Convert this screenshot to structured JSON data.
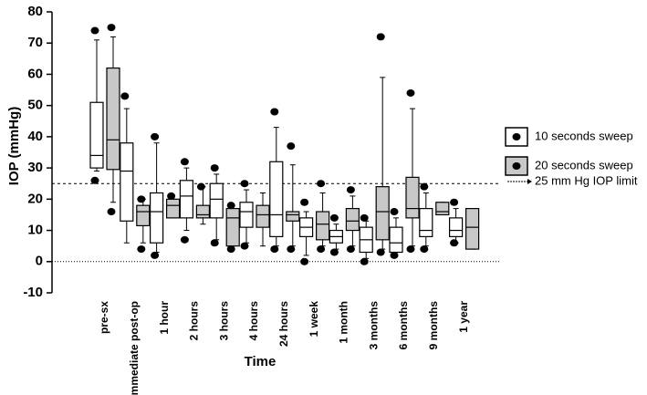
{
  "chart_data": {
    "type": "box",
    "y_label": "IOP (mmHg)",
    "x_label": "Time",
    "categories": [
      "pre-sx",
      "immediate post-op",
      "1 hour",
      "2 hours",
      "3 hours",
      "4 hours",
      "24 hours",
      "1 week",
      "1 month",
      "3 months",
      "6 months",
      "9 months",
      "1 year"
    ],
    "series": [
      {
        "name": "10 seconds sweep",
        "color": "#ffffff",
        "min": [
          29,
          6,
          3,
          10,
          7,
          6,
          5,
          2,
          4,
          1,
          3,
          5,
          6
        ],
        "q1": [
          30,
          13,
          6,
          14,
          14,
          11,
          8,
          8,
          6,
          3,
          3,
          8,
          8
        ],
        "median": [
          34,
          29,
          16,
          21,
          20,
          16,
          15,
          11,
          8,
          7,
          6,
          10,
          10
        ],
        "q3": [
          51,
          38,
          22,
          26,
          25,
          19,
          32,
          14,
          10,
          11,
          11,
          17,
          14
        ],
        "max": [
          71,
          49,
          38,
          30,
          28,
          23,
          43,
          16,
          12,
          13,
          14,
          22,
          17
        ],
        "outliers": [
          [
            74,
            26
          ],
          [
            53
          ],
          [
            40,
            2
          ],
          [
            32,
            7
          ],
          [
            30,
            6
          ],
          [
            25,
            5
          ],
          [
            48,
            4
          ],
          [
            19,
            0
          ],
          [
            14,
            3
          ],
          [
            14,
            0
          ],
          [
            16,
            2
          ],
          [
            24,
            4
          ],
          [
            19,
            6
          ]
        ]
      },
      {
        "name": "20 seconds sweep",
        "color": "#c8c8c8",
        "min": [
          19,
          6,
          14,
          12,
          5,
          5,
          5,
          5,
          5,
          4,
          5,
          15,
          4
        ],
        "q1": [
          29.5,
          11.5,
          14,
          14,
          5,
          11,
          13,
          7,
          10,
          7,
          14,
          15,
          4
        ],
        "median": [
          39,
          16,
          18,
          15,
          14,
          15,
          15,
          12,
          13,
          16,
          17,
          16,
          11
        ],
        "q3": [
          62,
          18,
          20,
          18,
          17,
          18,
          16,
          16,
          17,
          24,
          27,
          19,
          17
        ],
        "max": [
          72,
          20,
          20,
          24,
          17,
          22,
          31,
          22,
          21,
          59,
          49,
          19,
          17
        ],
        "outliers": [
          [
            75,
            16
          ],
          [
            20,
            4
          ],
          [
            21
          ],
          [
            24
          ],
          [
            18,
            4
          ],
          [],
          [
            37,
            4
          ],
          [
            25,
            4
          ],
          [
            23,
            4
          ],
          [
            72,
            3
          ],
          [
            54,
            4
          ],
          [],
          []
        ]
      }
    ],
    "reference_line": {
      "value": 25,
      "label": "25 mm Hg IOP limit"
    },
    "zero_line": true,
    "ylim": [
      -10,
      80
    ],
    "yticks": [
      -10,
      0,
      10,
      20,
      30,
      40,
      50,
      60,
      70,
      80
    ],
    "legend": "right"
  }
}
